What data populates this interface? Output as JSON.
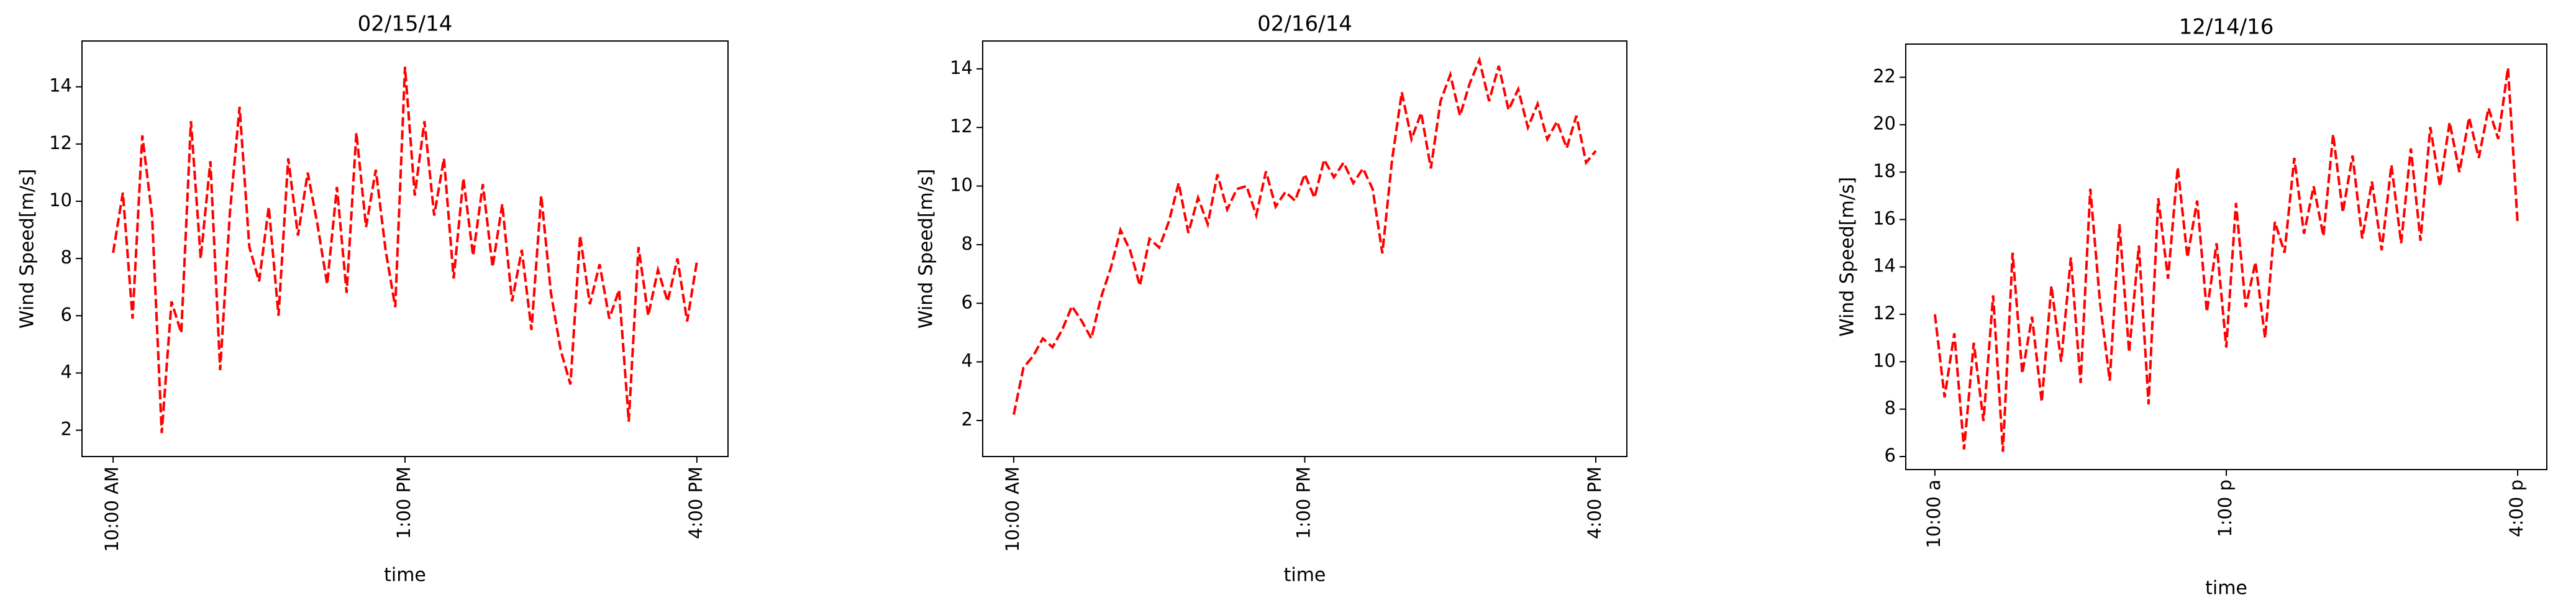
{
  "chart_data": [
    {
      "type": "line",
      "title": "02/15/14",
      "xlabel": "time",
      "ylabel": "Wind Speed[m/s]",
      "color": "#ff0000",
      "line_style": "dashed",
      "grid": false,
      "x": [
        10.0,
        10.1,
        10.2,
        10.3,
        10.4,
        10.5,
        10.6,
        10.7,
        10.8,
        10.9,
        11.0,
        11.1,
        11.2,
        11.3,
        11.4,
        11.5,
        11.6,
        11.7,
        11.8,
        11.9,
        12.0,
        12.1,
        12.2,
        12.3,
        12.4,
        12.5,
        12.6,
        12.7,
        12.8,
        12.9,
        13.0,
        13.1,
        13.2,
        13.3,
        13.4,
        13.5,
        13.6,
        13.7,
        13.8,
        13.9,
        14.0,
        14.1,
        14.2,
        14.3,
        14.4,
        14.5,
        14.6,
        14.7,
        14.8,
        14.9,
        15.0,
        15.1,
        15.2,
        15.3,
        15.4,
        15.5,
        15.6,
        15.7,
        15.8,
        15.9,
        16.0
      ],
      "values": [
        8.2,
        10.3,
        5.9,
        12.3,
        9.5,
        1.9,
        6.5,
        5.4,
        12.8,
        8.0,
        11.4,
        4.1,
        9.6,
        13.3,
        8.4,
        7.2,
        9.8,
        6.0,
        11.5,
        8.8,
        11.0,
        9.2,
        7.1,
        10.5,
        6.8,
        12.4,
        9.1,
        11.1,
        8.3,
        6.3,
        14.7,
        10.2,
        12.8,
        9.5,
        11.5,
        7.3,
        10.8,
        8.1,
        10.6,
        7.7,
        9.9,
        6.5,
        8.3,
        5.5,
        10.2,
        6.8,
        4.8,
        3.6,
        8.8,
        6.4,
        7.8,
        5.9,
        6.9,
        2.3,
        8.4,
        6.0,
        7.6,
        6.5,
        8.0,
        5.8,
        7.9
      ],
      "xlim": [
        9.68,
        16.32
      ],
      "xticks": [
        {
          "value": 10,
          "label": "10:00 AM"
        },
        {
          "value": 13,
          "label": "1:00 PM"
        },
        {
          "value": 16,
          "label": "4:00 PM"
        }
      ],
      "ylim": [
        1.08,
        15.6
      ],
      "yticks": [
        2,
        4,
        6,
        8,
        10,
        12,
        14
      ]
    },
    {
      "type": "line",
      "title": "02/16/14",
      "xlabel": "time",
      "ylabel": "Wind Speed[m/s]",
      "color": "#ff0000",
      "line_style": "dashed",
      "grid": false,
      "x": [
        10.0,
        10.1,
        10.2,
        10.3,
        10.4,
        10.5,
        10.6,
        10.7,
        10.8,
        10.9,
        11.0,
        11.1,
        11.2,
        11.3,
        11.4,
        11.5,
        11.6,
        11.7,
        11.8,
        11.9,
        12.0,
        12.1,
        12.2,
        12.3,
        12.4,
        12.5,
        12.6,
        12.7,
        12.8,
        12.9,
        13.0,
        13.1,
        13.2,
        13.3,
        13.4,
        13.5,
        13.6,
        13.7,
        13.8,
        13.9,
        14.0,
        14.1,
        14.2,
        14.3,
        14.4,
        14.5,
        14.6,
        14.7,
        14.8,
        14.9,
        15.0,
        15.1,
        15.2,
        15.3,
        15.4,
        15.5,
        15.6,
        15.7,
        15.8,
        15.9,
        16.0
      ],
      "values": [
        2.2,
        3.8,
        4.2,
        4.8,
        4.5,
        5.1,
        5.9,
        5.4,
        4.8,
        6.2,
        7.2,
        8.5,
        7.8,
        6.6,
        8.2,
        7.9,
        8.8,
        10.1,
        8.4,
        9.6,
        8.7,
        10.4,
        9.2,
        9.9,
        10.0,
        9.0,
        10.5,
        9.3,
        9.8,
        9.5,
        10.4,
        9.6,
        10.9,
        10.3,
        10.8,
        10.1,
        10.6,
        9.9,
        7.7,
        10.9,
        13.2,
        11.6,
        12.5,
        10.6,
        12.9,
        13.8,
        12.4,
        13.5,
        14.3,
        12.9,
        14.1,
        12.6,
        13.3,
        12.0,
        12.8,
        11.6,
        12.2,
        11.3,
        12.4,
        10.8,
        11.2
      ],
      "xlim": [
        9.68,
        16.32
      ],
      "xticks": [
        {
          "value": 10,
          "label": "10:00 AM"
        },
        {
          "value": 13,
          "label": "1:00 PM"
        },
        {
          "value": 16,
          "label": "4:00 PM"
        }
      ],
      "ylim": [
        0.77,
        14.95
      ],
      "yticks": [
        2,
        4,
        6,
        8,
        10,
        12,
        14
      ]
    },
    {
      "type": "line",
      "title": "12/14/16",
      "xlabel": "time",
      "ylabel": "Wind Speed[m/s]",
      "color": "#ff0000",
      "line_style": "dashed",
      "grid": false,
      "x": [
        10.0,
        10.1,
        10.2,
        10.3,
        10.4,
        10.5,
        10.6,
        10.7,
        10.8,
        10.9,
        11.0,
        11.1,
        11.2,
        11.3,
        11.4,
        11.5,
        11.6,
        11.7,
        11.8,
        11.9,
        12.0,
        12.1,
        12.2,
        12.3,
        12.4,
        12.5,
        12.6,
        12.7,
        12.8,
        12.9,
        13.0,
        13.1,
        13.2,
        13.3,
        13.4,
        13.5,
        13.6,
        13.7,
        13.8,
        13.9,
        14.0,
        14.1,
        14.2,
        14.3,
        14.4,
        14.5,
        14.6,
        14.7,
        14.8,
        14.9,
        15.0,
        15.1,
        15.2,
        15.3,
        15.4,
        15.5,
        15.6,
        15.7,
        15.8,
        15.9,
        16.0
      ],
      "values": [
        12.0,
        8.5,
        11.2,
        6.3,
        10.8,
        7.5,
        12.8,
        6.2,
        14.6,
        9.5,
        11.9,
        8.3,
        13.2,
        10.0,
        14.4,
        9.1,
        17.3,
        12.5,
        9.2,
        15.8,
        10.4,
        14.9,
        8.2,
        16.9,
        13.5,
        18.2,
        14.4,
        16.8,
        12.1,
        15.0,
        10.6,
        16.7,
        12.3,
        14.2,
        11.0,
        15.9,
        14.6,
        18.6,
        15.4,
        17.4,
        15.3,
        19.6,
        16.3,
        18.7,
        15.2,
        17.6,
        14.7,
        18.3,
        15.0,
        19.0,
        15.1,
        19.9,
        17.4,
        20.1,
        18.0,
        20.3,
        18.6,
        20.7,
        19.4,
        22.4,
        15.8
      ],
      "xlim": [
        9.7,
        16.3
      ],
      "xticks": [
        {
          "value": 10,
          "label": "10:00 a"
        },
        {
          "value": 13,
          "label": "1:00 p"
        },
        {
          "value": 16,
          "label": "4:00 p"
        }
      ],
      "ylim": [
        5.45,
        23.4
      ],
      "yticks": [
        6,
        8,
        10,
        12,
        14,
        16,
        18,
        20,
        22
      ]
    }
  ]
}
